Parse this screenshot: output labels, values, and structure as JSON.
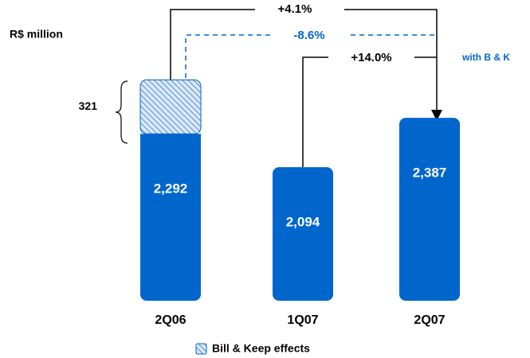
{
  "chart_data": {
    "type": "bar",
    "unit_label": "R$ million",
    "categories": [
      "2Q06",
      "1Q07",
      "2Q07"
    ],
    "values": [
      2292,
      2094,
      2387
    ],
    "value_labels": [
      "2,292",
      "2,094",
      "2,387"
    ],
    "color": "#0066cc",
    "stack": {
      "name": "Bill & Keep effects",
      "values": [
        321,
        null,
        null
      ],
      "color": "#0066cc"
    },
    "ylim": [
      1300,
      2700
    ],
    "annotations": {
      "growth_total": "+4.1%",
      "growth_with_bk": "-8.6%",
      "growth_quarter": "+14.0%",
      "with_bk_note": "with B & K"
    }
  }
}
